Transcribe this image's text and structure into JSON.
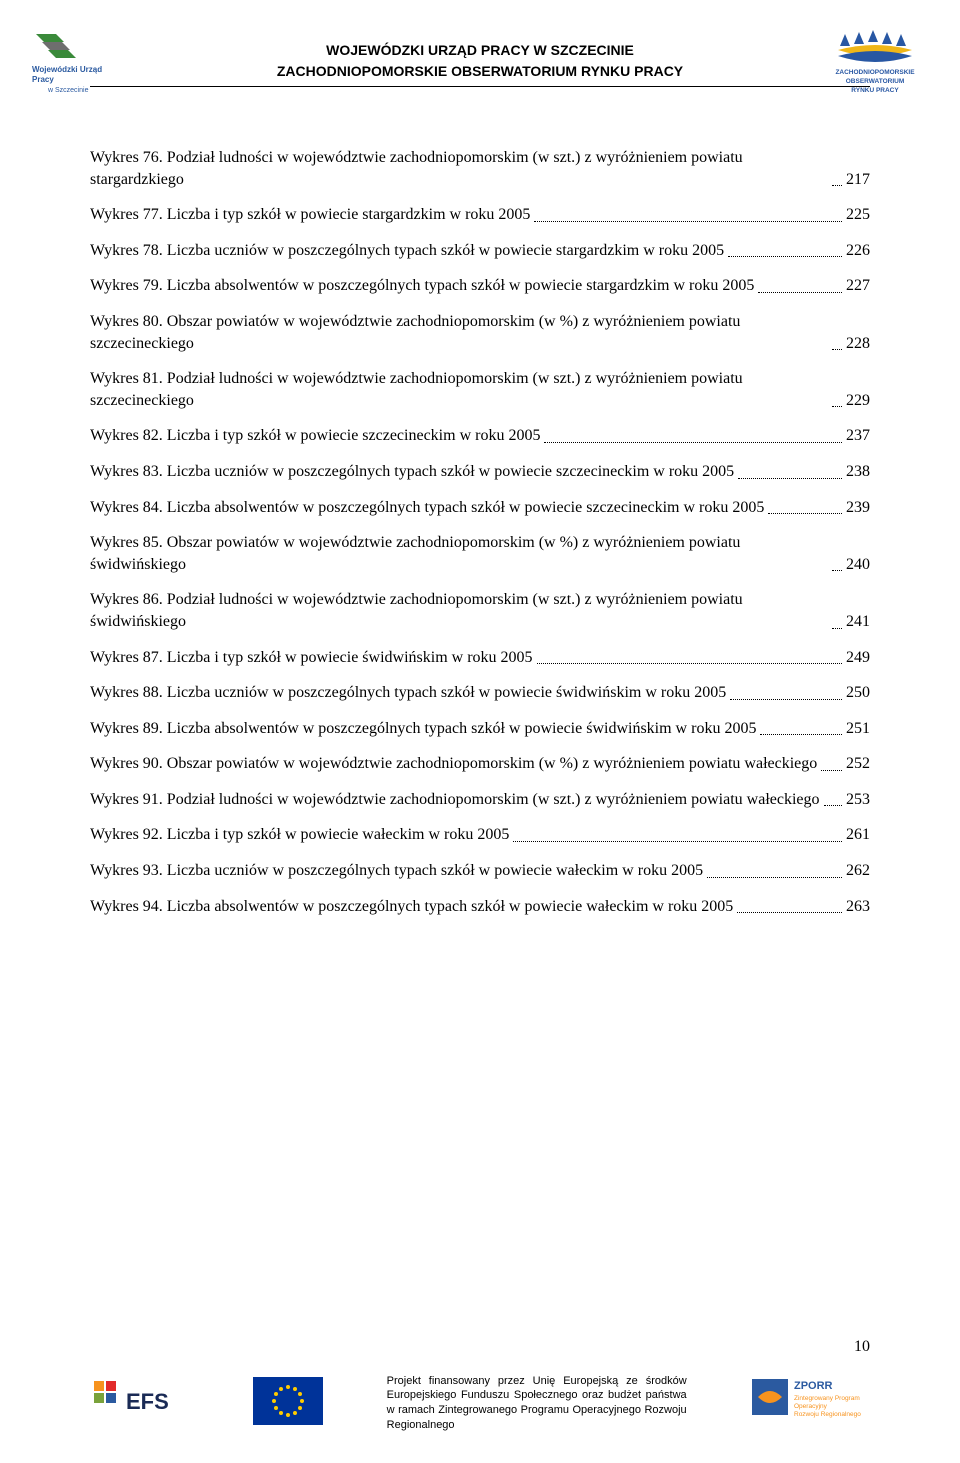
{
  "header": {
    "line1": "WOJEWÓDZKI URZĄD PRACY W SZCZECINIE",
    "line2": "ZACHODNIOPOMORSKIE OBSERWATORIUM RYNKU PRACY",
    "left_logo_label": "Wojewódzki Urząd Pracy w Szczecinie",
    "right_logo_label": "ZACHODNIOPOMORSKIE OBSERWATORIUM RYNKU PRACY"
  },
  "toc": [
    {
      "text": "Wykres 76. Podział ludności w województwie zachodniopomorskim (w szt.) z wyróżnieniem powiatu stargardzkiego",
      "page": "217"
    },
    {
      "text": "Wykres 77. Liczba i typ szkół w powiecie stargardzkim w roku 2005",
      "page": "225"
    },
    {
      "text": "Wykres 78. Liczba uczniów w poszczególnych typach szkół w powiecie stargardzkim w roku 2005",
      "page": "226"
    },
    {
      "text": "Wykres 79. Liczba absolwentów w poszczególnych typach szkół w powiecie stargardzkim w roku 2005",
      "page": "227"
    },
    {
      "text": "Wykres 80. Obszar powiatów w województwie zachodniopomorskim (w %) z wyróżnieniem powiatu szczecineckiego",
      "page": "228"
    },
    {
      "text": "Wykres 81. Podział ludności w województwie zachodniopomorskim (w szt.) z wyróżnieniem powiatu szczecineckiego",
      "page": "229"
    },
    {
      "text": "Wykres 82. Liczba i typ szkół w powiecie szczecineckim w roku 2005",
      "page": "237"
    },
    {
      "text": "Wykres 83. Liczba uczniów w poszczególnych typach szkół w powiecie szczecineckim w roku 2005",
      "page": "238"
    },
    {
      "text": "Wykres 84. Liczba absolwentów w poszczególnych typach szkół w powiecie szczecineckim w roku 2005",
      "page": "239"
    },
    {
      "text": "Wykres 85. Obszar powiatów w województwie zachodniopomorskim (w %) z wyróżnieniem powiatu świdwińskiego",
      "page": "240"
    },
    {
      "text": "Wykres 86. Podział ludności w województwie zachodniopomorskim (w szt.) z wyróżnieniem powiatu świdwińskiego",
      "page": "241"
    },
    {
      "text": "Wykres 87. Liczba i typ szkół w powiecie świdwińskim w roku 2005",
      "page": "249"
    },
    {
      "text": "Wykres 88. Liczba uczniów w poszczególnych typach szkół w powiecie świdwińskim w roku 2005",
      "page": "250"
    },
    {
      "text": "Wykres 89. Liczba absolwentów w poszczególnych typach szkół w powiecie świdwińskim w roku 2005",
      "page": "251"
    },
    {
      "text": "Wykres 90. Obszar powiatów w województwie zachodniopomorskim (w %) z wyróżnieniem powiatu wałeckiego",
      "page": "252"
    },
    {
      "text": "Wykres 91. Podział ludności w województwie zachodniopomorskim (w szt.) z wyróżnieniem powiatu wałeckiego",
      "page": "253"
    },
    {
      "text": "Wykres 92. Liczba i typ szkół w powiecie wałeckim w roku 2005",
      "page": "261"
    },
    {
      "text": "Wykres 93. Liczba uczniów w poszczególnych typach szkół w powiecie wałeckim w roku 2005",
      "page": "262"
    },
    {
      "text": "Wykres 94. Liczba absolwentów w poszczególnych typach szkół w powiecie wałeckim w roku 2005",
      "page": "263"
    }
  ],
  "footer": {
    "page_number": "10",
    "text": "Projekt finansowany przez Unię Europejską ze środków Europejskiego Funduszu Społecznego oraz budżet państwa w ramach Zintegrowanego Programu Operacyjnego Rozwoju Regionalnego",
    "efs_label": "EFS",
    "eu_flag_label": "EU",
    "zporr_label": "ZPORR"
  },
  "colors": {
    "text": "#000000",
    "background": "#ffffff",
    "leader": "#000000",
    "eu_blue": "#003399",
    "eu_yellow": "#ffcc00",
    "zporr_orange": "#f7931e",
    "zporr_blue": "#2b5aa0",
    "wup_green": "#3a8a3a",
    "obs_blue": "#2857a3"
  }
}
